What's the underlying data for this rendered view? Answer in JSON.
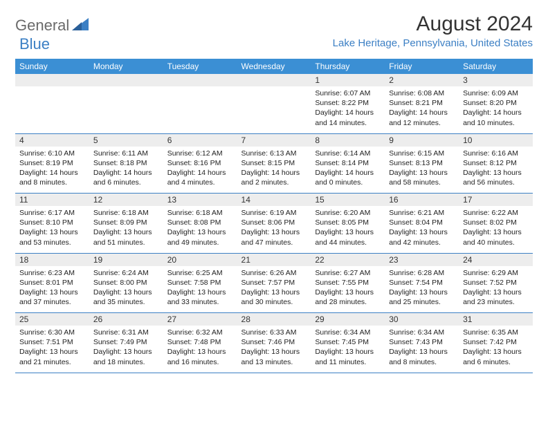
{
  "logo": {
    "text1": "General",
    "text2": "Blue"
  },
  "title": "August 2024",
  "location": "Lake Heritage, Pennsylvania, United States",
  "colors": {
    "header_bg": "#3b8fd4",
    "accent": "#3b7fc4",
    "daynum_bg": "#ededed",
    "text": "#222222",
    "logo_gray": "#6a6a6a"
  },
  "day_headers": [
    "Sunday",
    "Monday",
    "Tuesday",
    "Wednesday",
    "Thursday",
    "Friday",
    "Saturday"
  ],
  "weeks": [
    [
      null,
      null,
      null,
      null,
      {
        "n": "1",
        "sr": "Sunrise: 6:07 AM",
        "ss": "Sunset: 8:22 PM",
        "dl1": "Daylight: 14 hours",
        "dl2": "and 14 minutes."
      },
      {
        "n": "2",
        "sr": "Sunrise: 6:08 AM",
        "ss": "Sunset: 8:21 PM",
        "dl1": "Daylight: 14 hours",
        "dl2": "and 12 minutes."
      },
      {
        "n": "3",
        "sr": "Sunrise: 6:09 AM",
        "ss": "Sunset: 8:20 PM",
        "dl1": "Daylight: 14 hours",
        "dl2": "and 10 minutes."
      }
    ],
    [
      {
        "n": "4",
        "sr": "Sunrise: 6:10 AM",
        "ss": "Sunset: 8:19 PM",
        "dl1": "Daylight: 14 hours",
        "dl2": "and 8 minutes."
      },
      {
        "n": "5",
        "sr": "Sunrise: 6:11 AM",
        "ss": "Sunset: 8:18 PM",
        "dl1": "Daylight: 14 hours",
        "dl2": "and 6 minutes."
      },
      {
        "n": "6",
        "sr": "Sunrise: 6:12 AM",
        "ss": "Sunset: 8:16 PM",
        "dl1": "Daylight: 14 hours",
        "dl2": "and 4 minutes."
      },
      {
        "n": "7",
        "sr": "Sunrise: 6:13 AM",
        "ss": "Sunset: 8:15 PM",
        "dl1": "Daylight: 14 hours",
        "dl2": "and 2 minutes."
      },
      {
        "n": "8",
        "sr": "Sunrise: 6:14 AM",
        "ss": "Sunset: 8:14 PM",
        "dl1": "Daylight: 14 hours",
        "dl2": "and 0 minutes."
      },
      {
        "n": "9",
        "sr": "Sunrise: 6:15 AM",
        "ss": "Sunset: 8:13 PM",
        "dl1": "Daylight: 13 hours",
        "dl2": "and 58 minutes."
      },
      {
        "n": "10",
        "sr": "Sunrise: 6:16 AM",
        "ss": "Sunset: 8:12 PM",
        "dl1": "Daylight: 13 hours",
        "dl2": "and 56 minutes."
      }
    ],
    [
      {
        "n": "11",
        "sr": "Sunrise: 6:17 AM",
        "ss": "Sunset: 8:10 PM",
        "dl1": "Daylight: 13 hours",
        "dl2": "and 53 minutes."
      },
      {
        "n": "12",
        "sr": "Sunrise: 6:18 AM",
        "ss": "Sunset: 8:09 PM",
        "dl1": "Daylight: 13 hours",
        "dl2": "and 51 minutes."
      },
      {
        "n": "13",
        "sr": "Sunrise: 6:18 AM",
        "ss": "Sunset: 8:08 PM",
        "dl1": "Daylight: 13 hours",
        "dl2": "and 49 minutes."
      },
      {
        "n": "14",
        "sr": "Sunrise: 6:19 AM",
        "ss": "Sunset: 8:06 PM",
        "dl1": "Daylight: 13 hours",
        "dl2": "and 47 minutes."
      },
      {
        "n": "15",
        "sr": "Sunrise: 6:20 AM",
        "ss": "Sunset: 8:05 PM",
        "dl1": "Daylight: 13 hours",
        "dl2": "and 44 minutes."
      },
      {
        "n": "16",
        "sr": "Sunrise: 6:21 AM",
        "ss": "Sunset: 8:04 PM",
        "dl1": "Daylight: 13 hours",
        "dl2": "and 42 minutes."
      },
      {
        "n": "17",
        "sr": "Sunrise: 6:22 AM",
        "ss": "Sunset: 8:02 PM",
        "dl1": "Daylight: 13 hours",
        "dl2": "and 40 minutes."
      }
    ],
    [
      {
        "n": "18",
        "sr": "Sunrise: 6:23 AM",
        "ss": "Sunset: 8:01 PM",
        "dl1": "Daylight: 13 hours",
        "dl2": "and 37 minutes."
      },
      {
        "n": "19",
        "sr": "Sunrise: 6:24 AM",
        "ss": "Sunset: 8:00 PM",
        "dl1": "Daylight: 13 hours",
        "dl2": "and 35 minutes."
      },
      {
        "n": "20",
        "sr": "Sunrise: 6:25 AM",
        "ss": "Sunset: 7:58 PM",
        "dl1": "Daylight: 13 hours",
        "dl2": "and 33 minutes."
      },
      {
        "n": "21",
        "sr": "Sunrise: 6:26 AM",
        "ss": "Sunset: 7:57 PM",
        "dl1": "Daylight: 13 hours",
        "dl2": "and 30 minutes."
      },
      {
        "n": "22",
        "sr": "Sunrise: 6:27 AM",
        "ss": "Sunset: 7:55 PM",
        "dl1": "Daylight: 13 hours",
        "dl2": "and 28 minutes."
      },
      {
        "n": "23",
        "sr": "Sunrise: 6:28 AM",
        "ss": "Sunset: 7:54 PM",
        "dl1": "Daylight: 13 hours",
        "dl2": "and 25 minutes."
      },
      {
        "n": "24",
        "sr": "Sunrise: 6:29 AM",
        "ss": "Sunset: 7:52 PM",
        "dl1": "Daylight: 13 hours",
        "dl2": "and 23 minutes."
      }
    ],
    [
      {
        "n": "25",
        "sr": "Sunrise: 6:30 AM",
        "ss": "Sunset: 7:51 PM",
        "dl1": "Daylight: 13 hours",
        "dl2": "and 21 minutes."
      },
      {
        "n": "26",
        "sr": "Sunrise: 6:31 AM",
        "ss": "Sunset: 7:49 PM",
        "dl1": "Daylight: 13 hours",
        "dl2": "and 18 minutes."
      },
      {
        "n": "27",
        "sr": "Sunrise: 6:32 AM",
        "ss": "Sunset: 7:48 PM",
        "dl1": "Daylight: 13 hours",
        "dl2": "and 16 minutes."
      },
      {
        "n": "28",
        "sr": "Sunrise: 6:33 AM",
        "ss": "Sunset: 7:46 PM",
        "dl1": "Daylight: 13 hours",
        "dl2": "and 13 minutes."
      },
      {
        "n": "29",
        "sr": "Sunrise: 6:34 AM",
        "ss": "Sunset: 7:45 PM",
        "dl1": "Daylight: 13 hours",
        "dl2": "and 11 minutes."
      },
      {
        "n": "30",
        "sr": "Sunrise: 6:34 AM",
        "ss": "Sunset: 7:43 PM",
        "dl1": "Daylight: 13 hours",
        "dl2": "and 8 minutes."
      },
      {
        "n": "31",
        "sr": "Sunrise: 6:35 AM",
        "ss": "Sunset: 7:42 PM",
        "dl1": "Daylight: 13 hours",
        "dl2": "and 6 minutes."
      }
    ]
  ]
}
